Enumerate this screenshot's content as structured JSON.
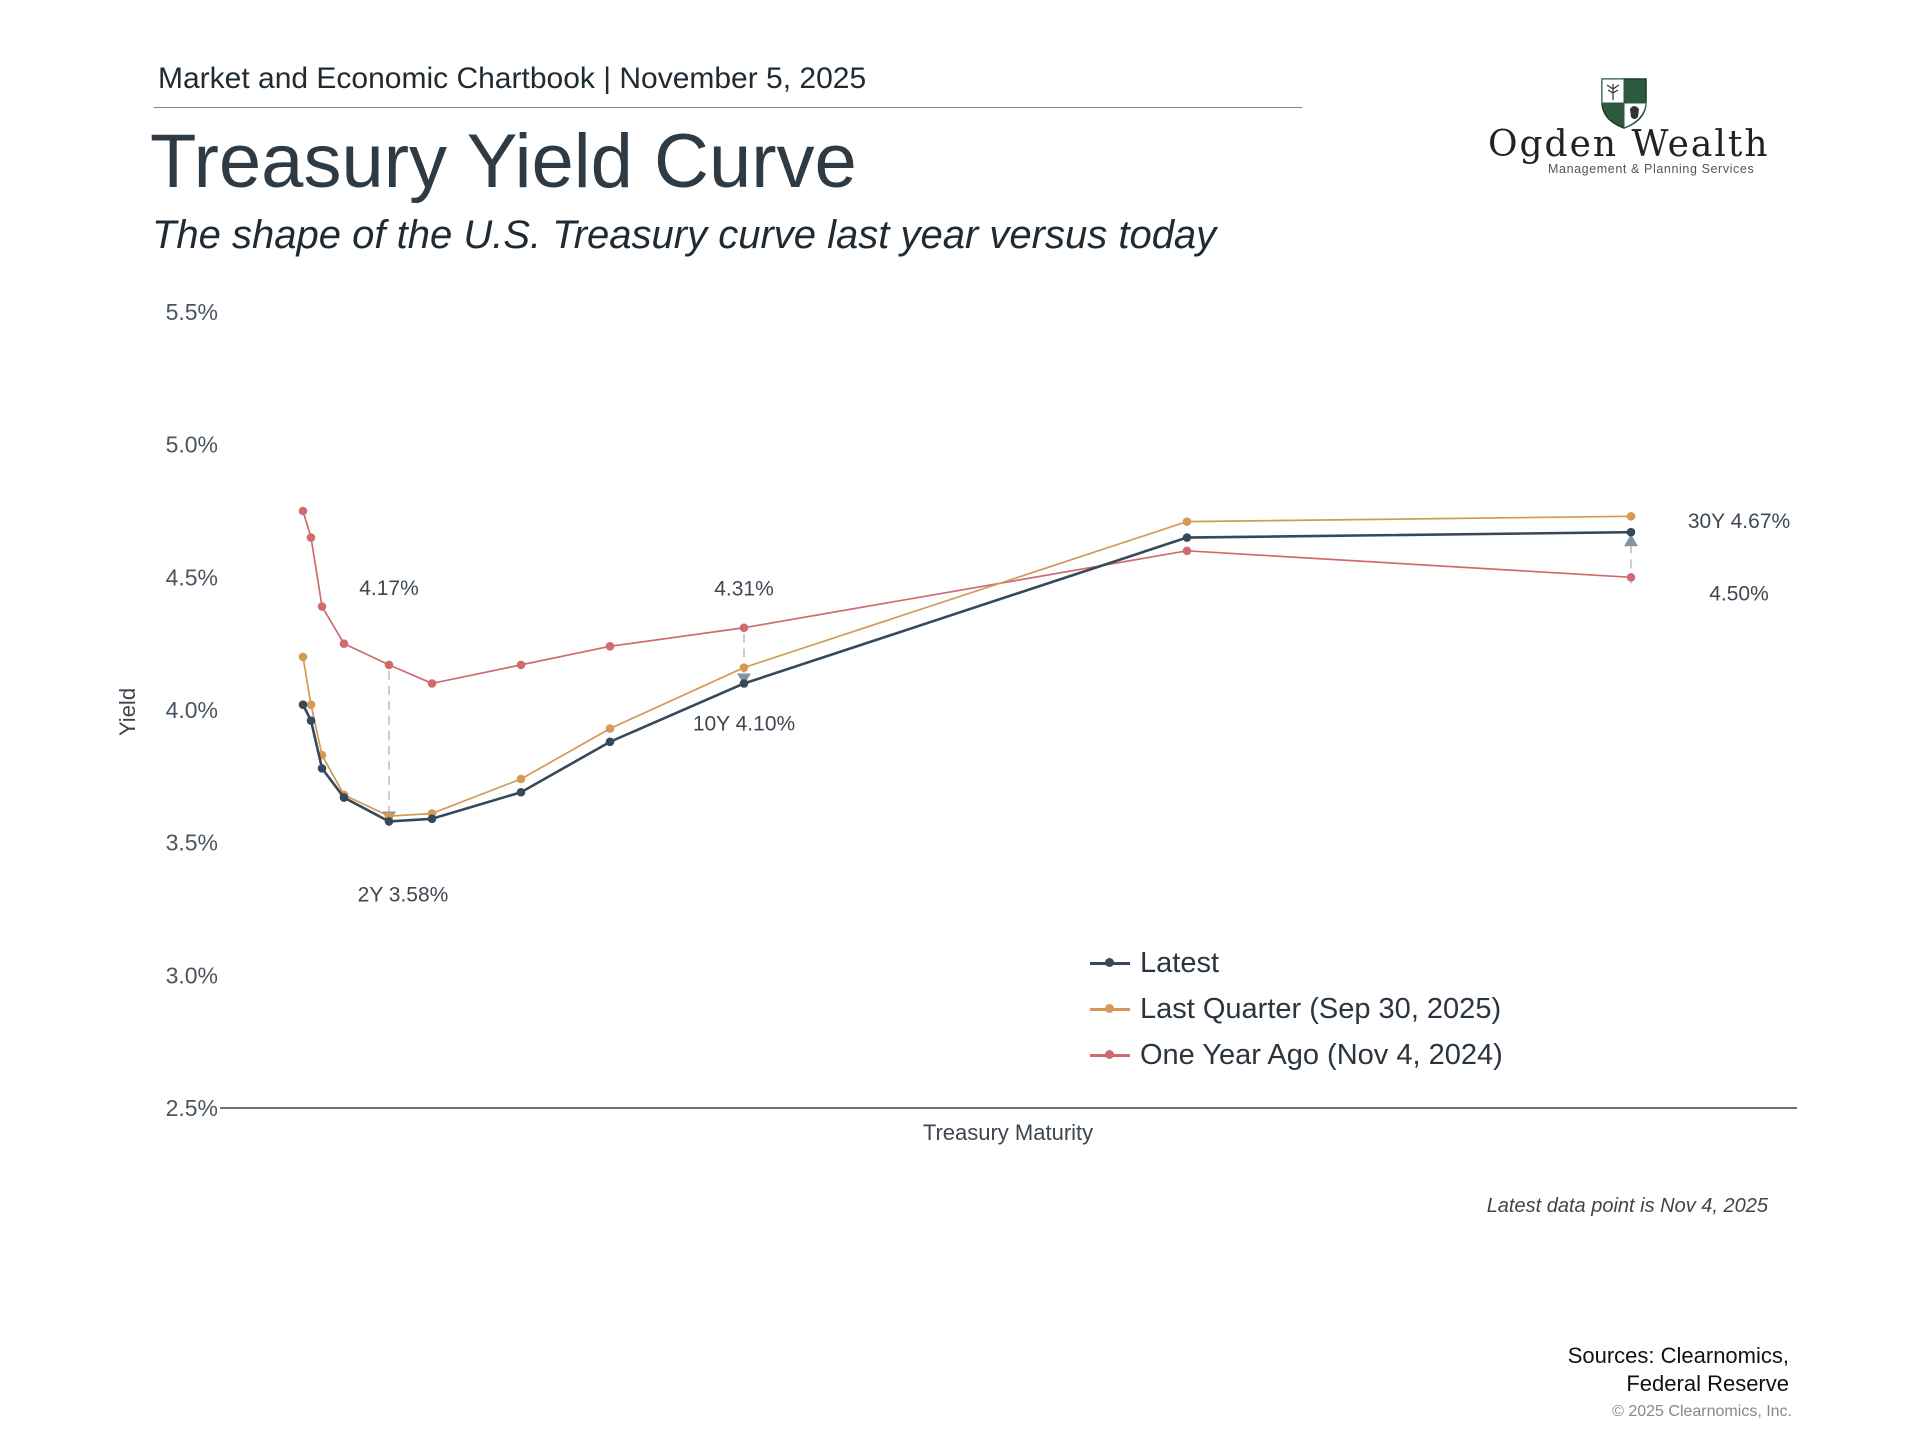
{
  "header": {
    "chartbook": "Market and Economic Chartbook | November 5, 2025",
    "title": "Treasury Yield Curve",
    "subtitle": "The shape of the U.S. Treasury curve last year versus today"
  },
  "logo": {
    "name": "Ogden Wealth",
    "tagline": "Management & Planning Services",
    "colors": {
      "shield": "#2d5a3d",
      "text": "#222222"
    }
  },
  "chart_data": {
    "type": "line",
    "title": "",
    "xlabel": "Treasury Maturity",
    "ylabel": "Yield",
    "ylim": [
      2.5,
      5.5
    ],
    "yticks": [
      "2.5%",
      "3.0%",
      "3.5%",
      "4.0%",
      "4.5%",
      "5.0%",
      "5.5%"
    ],
    "ytick_values": [
      2.5,
      3.0,
      3.5,
      4.0,
      4.5,
      5.0,
      5.5
    ],
    "x_scale": "maturity (years), no tick labels shown",
    "x_maturity_years": [
      0.083,
      0.25,
      0.5,
      1,
      2,
      3,
      5,
      7,
      10,
      20,
      30
    ],
    "grid": false,
    "legend_position": "bottom-right",
    "series": [
      {
        "name": "Latest",
        "color": "#36495a",
        "values": [
          4.02,
          3.96,
          3.78,
          3.67,
          3.58,
          3.59,
          3.69,
          3.88,
          4.1,
          4.65,
          4.67
        ]
      },
      {
        "name": "Last Quarter (Sep 30, 2025)",
        "color": "#d49a55",
        "values": [
          4.2,
          4.02,
          3.83,
          3.68,
          3.6,
          3.61,
          3.74,
          3.93,
          4.16,
          4.71,
          4.73
        ]
      },
      {
        "name": "One Year Ago (Nov 4, 2024)",
        "color": "#cf6b6f",
        "values": [
          4.75,
          4.65,
          4.39,
          4.25,
          4.17,
          4.1,
          4.17,
          4.24,
          4.31,
          4.6,
          4.5
        ]
      }
    ],
    "annotations": [
      {
        "text": "4.17%",
        "x": 2,
        "y": 4.17
      },
      {
        "text": "2Y 3.58%",
        "x": 2,
        "y": 3.58
      },
      {
        "text": "4.31%",
        "x": 10,
        "y": 4.31
      },
      {
        "text": "10Y 4.10%",
        "x": 10,
        "y": 4.1
      },
      {
        "text": "30Y 4.67%",
        "x": 30,
        "y": 4.67
      },
      {
        "text": "4.50%",
        "x": 30,
        "y": 4.5
      }
    ],
    "change_arrows": [
      {
        "x": 2,
        "from": 4.17,
        "to": 3.58,
        "direction": "down"
      },
      {
        "x": 10,
        "from": 4.31,
        "to": 4.1,
        "direction": "down"
      },
      {
        "x": 30,
        "from": 4.5,
        "to": 4.67,
        "direction": "up"
      }
    ]
  },
  "footer": {
    "note": "Latest data point is Nov 4, 2025",
    "sources_line1": "Sources: Clearnomics,",
    "sources_line2": "Federal Reserve",
    "copyright": "© 2025 Clearnomics, Inc."
  }
}
